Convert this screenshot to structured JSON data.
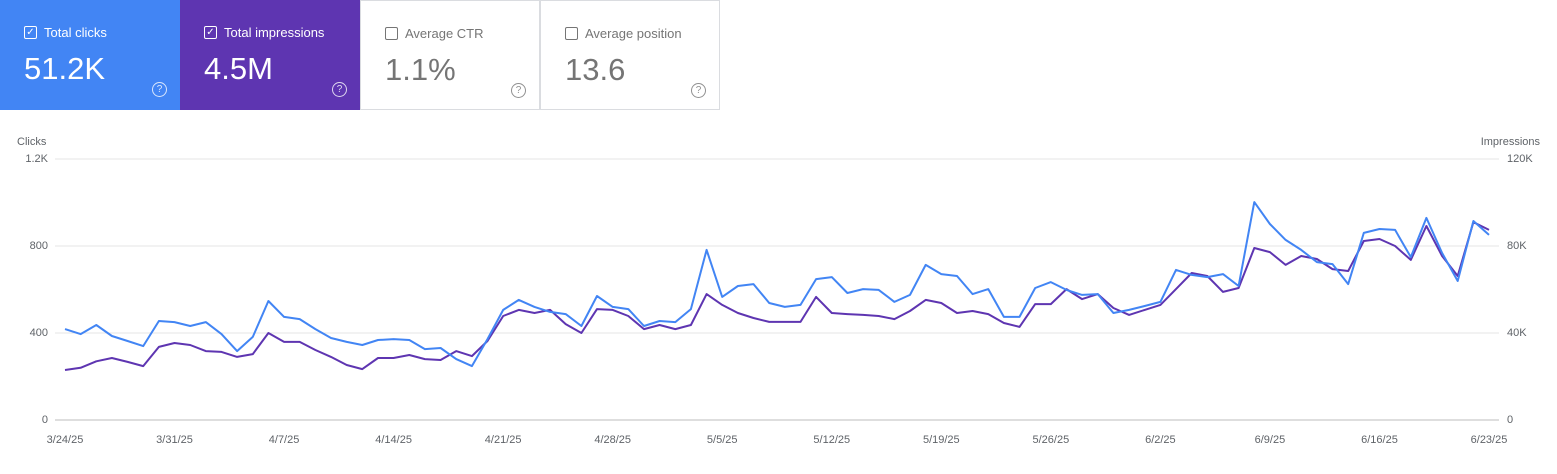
{
  "metrics": [
    {
      "label": "Total clicks",
      "value": "51.2K",
      "selected": true,
      "color": "#4285f4"
    },
    {
      "label": "Total impressions",
      "value": "4.5M",
      "selected": true,
      "color": "#5e35b1"
    },
    {
      "label": "Average CTR",
      "value": "1.1%",
      "selected": false,
      "color": "#ffffff"
    },
    {
      "label": "Average position",
      "value": "13.6",
      "selected": false,
      "color": "#ffffff"
    }
  ],
  "chart_data": {
    "type": "line",
    "y_label": "Clicks",
    "y2_label": "Impressions",
    "categories": [
      "3/24/25",
      null,
      null,
      null,
      null,
      null,
      null,
      "3/31/25",
      null,
      null,
      null,
      null,
      null,
      null,
      "4/7/25",
      null,
      null,
      null,
      null,
      null,
      null,
      "4/14/25",
      null,
      null,
      null,
      null,
      null,
      null,
      "4/21/25",
      null,
      null,
      null,
      null,
      null,
      null,
      "4/28/25",
      null,
      null,
      null,
      null,
      null,
      null,
      "5/5/25",
      null,
      null,
      null,
      null,
      null,
      null,
      "5/12/25",
      null,
      null,
      null,
      null,
      null,
      null,
      "5/19/25",
      null,
      null,
      null,
      null,
      null,
      null,
      "5/26/25",
      null,
      null,
      null,
      null,
      null,
      null,
      "6/2/25",
      null,
      null,
      null,
      null,
      null,
      null,
      "6/9/25",
      null,
      null,
      null,
      null,
      null,
      null,
      "6/16/25",
      null,
      null,
      null,
      null,
      null,
      null,
      "6/23/25"
    ],
    "series": [
      {
        "name": "Clicks",
        "color": "#4285f4",
        "axis": "y",
        "values": [
          418,
          395,
          437,
          386,
          363,
          340,
          455,
          450,
          432,
          450,
          395,
          317,
          382,
          547,
          474,
          464,
          418,
          377,
          359,
          345,
          368,
          372,
          368,
          326,
          331,
          280,
          248,
          372,
          506,
          552,
          520,
          497,
          487,
          432,
          570,
          520,
          510,
          432,
          455,
          450,
          510,
          782,
          566,
          616,
          625,
          538,
          520,
          529,
          648,
          657,
          584,
          602,
          598,
          543,
          575,
          713,
          671,
          662,
          579,
          602,
          474,
          474,
          607,
          634,
          598,
          575,
          579,
          492,
          506,
          524,
          543,
          690,
          667,
          657,
          671,
          616,
          1002,
          901,
          828,
          782,
          726,
          717,
          625,
          860,
          878,
          874,
          749,
          929,
          768,
          639,
          915,
          851
        ]
      },
      {
        "name": "Impressions",
        "color": "#5e35b1",
        "axis": "y2",
        "values": [
          23000,
          24000,
          27000,
          28500,
          26700,
          24800,
          33600,
          35400,
          34500,
          31700,
          31300,
          29000,
          30300,
          40000,
          35900,
          35900,
          32200,
          29000,
          25300,
          23400,
          28500,
          28500,
          29900,
          28000,
          27600,
          31700,
          29400,
          36300,
          47800,
          50600,
          49200,
          50600,
          44100,
          40000,
          51000,
          50600,
          47800,
          41800,
          43700,
          41800,
          43700,
          57900,
          52900,
          49200,
          46900,
          45100,
          45100,
          45100,
          56600,
          49200,
          48700,
          48300,
          47800,
          46400,
          50100,
          55200,
          53800,
          49200,
          50100,
          48700,
          44600,
          42800,
          53300,
          53300,
          60200,
          55600,
          57900,
          51500,
          48300,
          50600,
          52900,
          60200,
          67600,
          66200,
          58900,
          60700,
          79100,
          77200,
          71300,
          75400,
          74000,
          69400,
          68500,
          82300,
          83200,
          80000,
          73600,
          89200,
          75400,
          66200,
          91000,
          87400
        ]
      }
    ],
    "ylim": [
      0,
      1200
    ],
    "yticks": [
      0,
      400,
      800,
      {
        "value": 1200,
        "label": "1.2K"
      }
    ],
    "y2lim": [
      0,
      120000
    ],
    "y2ticks": [
      0,
      {
        "value": 40000,
        "label": "40K"
      },
      {
        "value": 80000,
        "label": "80K"
      },
      {
        "value": 120000,
        "label": "120K"
      }
    ],
    "grid": true
  }
}
